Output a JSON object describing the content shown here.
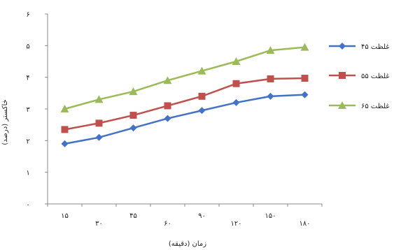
{
  "chart_data": {
    "type": "line",
    "title": "",
    "xlabel": "زمان (دقیقه)",
    "ylabel": "خاکستر (درصد)",
    "categories": [
      "۱۵",
      "۳۰",
      "۴۵",
      "۶۰",
      "۹۰",
      "۱۲۰",
      "۱۵۰",
      "۱۸۰"
    ],
    "ylim": [
      0,
      6
    ],
    "yticks": [
      "۰",
      "۱",
      "۲",
      "۳",
      "۴",
      "۵",
      "۶"
    ],
    "grid": false,
    "legend_position": "right",
    "series": [
      {
        "name": "غلظت ۴۵",
        "color": "#4472C4",
        "marker": "diamond",
        "values": [
          1.9,
          2.1,
          2.4,
          2.7,
          2.95,
          3.2,
          3.4,
          3.45
        ]
      },
      {
        "name": "غلظت ۵۵",
        "color": "#C0504D",
        "marker": "square",
        "values": [
          2.35,
          2.55,
          2.8,
          3.1,
          3.4,
          3.8,
          3.95,
          3.97
        ]
      },
      {
        "name": "غلظت ۶۵",
        "color": "#9BBB59",
        "marker": "triangle",
        "values": [
          3.0,
          3.3,
          3.55,
          3.9,
          4.2,
          4.5,
          4.85,
          4.95
        ]
      }
    ]
  }
}
